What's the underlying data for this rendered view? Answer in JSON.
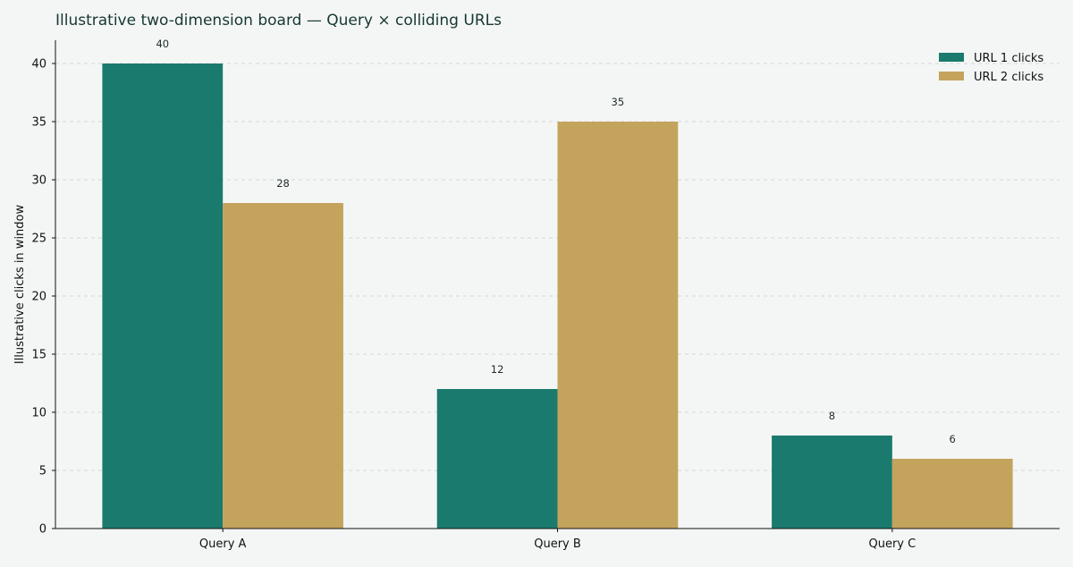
{
  "chart_data": {
    "type": "bar",
    "title": "Illustrative two-dimension board — Query × colliding URLs",
    "xlabel": "",
    "ylabel": "Illustrative clicks in window",
    "categories": [
      "Query A",
      "Query B",
      "Query C"
    ],
    "series": [
      {
        "name": "URL 1 clicks",
        "values": [
          40,
          12,
          8
        ],
        "color": "#1b7a6e"
      },
      {
        "name": "URL 2 clicks",
        "values": [
          28,
          35,
          6
        ],
        "color": "#c4a35d"
      }
    ],
    "ylim": [
      0,
      42
    ],
    "yticks": [
      0,
      5,
      10,
      15,
      20,
      25,
      30,
      35,
      40
    ],
    "grid": "horizontal, dashed",
    "legend_position": "top-right"
  },
  "colors": {
    "background": "#f4f6f5",
    "title": "#163832"
  }
}
